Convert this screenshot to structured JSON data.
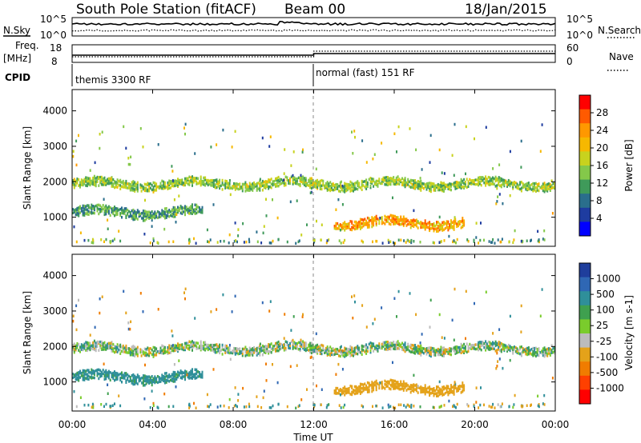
{
  "header": {
    "title": "South Pole Station (fitACF)",
    "beam": "Beam 00",
    "date": "18/Jan/2015"
  },
  "strip_labels": {
    "nsky": "N.Sky",
    "nsearch": "N.Search",
    "freq_line1": "Freq.",
    "freq_line2": "[MHz]",
    "nave": "Nave",
    "cpid": "CPID"
  },
  "strip_ticks": {
    "noise_left": [
      "10^5",
      "10^0"
    ],
    "noise_right": [
      "10^5",
      "10^0"
    ],
    "freq_left": [
      "18",
      "8"
    ],
    "nave_right": [
      "60",
      "0"
    ]
  },
  "cpid_segments": [
    "themis 3300 RF",
    "normal (fast) 151 RF"
  ],
  "power_panel": {
    "ylabel": "Slant Range [km]",
    "yticks": [
      "1000",
      "2000",
      "3000",
      "4000"
    ],
    "colorbar_label": "Power [dB]",
    "colorbar_ticks": [
      "28",
      "24",
      "20",
      "16",
      "12",
      "8",
      "4"
    ],
    "colorbar_colors": [
      "#ff0000",
      "#ff5a00",
      "#ff9800",
      "#f6b800",
      "#c8d21e",
      "#84c84a",
      "#3f9a5a",
      "#2a6e8c",
      "#1e3ca0",
      "#0000ff"
    ]
  },
  "velocity_panel": {
    "ylabel": "Slant Range [km]",
    "yticks": [
      "1000",
      "2000",
      "3000",
      "4000"
    ],
    "colorbar_label": "Velocity [m s-1]",
    "colorbar_ticks": [
      "1000",
      "500",
      "100",
      "25",
      "-25",
      "-100",
      "-500",
      "-1000"
    ],
    "colorbar_colors": [
      "#1f3e9c",
      "#2f67b4",
      "#2f8f9a",
      "#3fa04f",
      "#7acc2c",
      "#bcbcbc",
      "#e4a21a",
      "#f07c00",
      "#ff4000",
      "#ff0000"
    ]
  },
  "xaxis": {
    "label": "Time UT",
    "ticks": [
      "00:00",
      "04:00",
      "08:00",
      "12:00",
      "16:00",
      "20:00",
      "00:00"
    ]
  },
  "chart_data": {
    "type": "heatmap",
    "title": "South Pole Station (fitACF)",
    "x_range_hours": [
      0,
      24
    ],
    "y_range_km": [
      180,
      4600
    ],
    "cpid_change_hour": 12.0,
    "power_db_range": [
      0,
      30
    ],
    "velocity_range": [
      -1200,
      1200
    ],
    "features": [
      {
        "name": "band-2000km",
        "t_start": 0.0,
        "t_end": 24.0,
        "range_km": 2000,
        "power_db": 14,
        "velocity": 0
      },
      {
        "name": "lower-band",
        "t_start": 0.0,
        "t_end": 6.5,
        "range_km": 1200,
        "power_db": 10,
        "velocity": 200
      },
      {
        "name": "enhancement-1000km",
        "t_start": 13.0,
        "t_end": 19.5,
        "range_km": 900,
        "power_db": 22,
        "velocity": -300
      }
    ]
  }
}
